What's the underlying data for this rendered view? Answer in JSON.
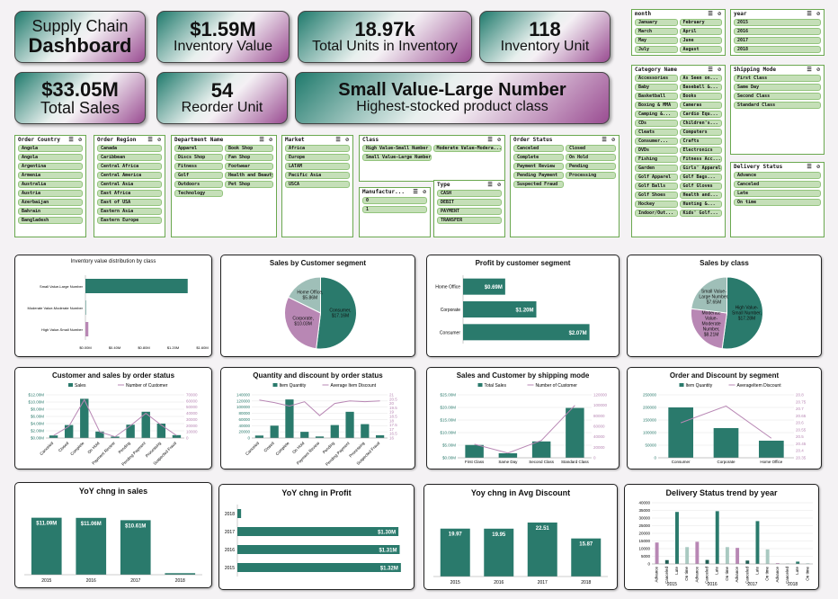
{
  "kpis": {
    "title_line1": "Supply Chain",
    "title_line2": "Dashboard",
    "inventory_value": {
      "value": "$1.59M",
      "label": "Inventory Value"
    },
    "total_units": {
      "value": "18.97k",
      "label": "Total Units in Inventory"
    },
    "inventory_unit": {
      "value": "118",
      "label": "Inventory Unit"
    },
    "total_sales": {
      "value": "$33.05M",
      "label": "Total Sales"
    },
    "reorder_unit": {
      "value": "54",
      "label": "Reorder Unit"
    },
    "class_card": {
      "value": "Small Value-Large Number",
      "label": "Highest-stocked product class"
    }
  },
  "slicers": {
    "month": {
      "title": "month",
      "items": [
        "January",
        "February",
        "March",
        "April",
        "May",
        "June",
        "July",
        "August"
      ]
    },
    "year": {
      "title": "year",
      "items": [
        "2015",
        "2016",
        "2017",
        "2018"
      ]
    },
    "category": {
      "title": "Category Name",
      "items": [
        "Accessories",
        "As Seen on...",
        "Baby",
        "Baseball &...",
        "Basketball",
        "Books",
        "Boxing & MMA",
        "Cameras",
        "Camping &...",
        "Cardio Equ...",
        "CDs",
        "Children's...",
        "Cleats",
        "Computers",
        "Consumer...",
        "Crafts",
        "DVDs",
        "Electronics",
        "Fishing",
        "Fitness Acc...",
        "Garden",
        "Girls' Apparel",
        "Golf Apparel",
        "Golf Bags...",
        "Golf Balls",
        "Golf Gloves",
        "Golf Shoes",
        "Health and...",
        "Hockey",
        "Hunting &...",
        "Indoor/Out...",
        "Kids' Golf..."
      ]
    },
    "shipping": {
      "title": "Shipping Mode",
      "items": [
        "First Class",
        "Same Day",
        "Second Class",
        "Standard Class"
      ]
    },
    "delivery": {
      "title": "Delivery Status",
      "items": [
        "Advance",
        "Canceled",
        "Late",
        "On time"
      ]
    },
    "order_country": {
      "title": "Order Country",
      "items": [
        "Angola",
        "Angola",
        "Argentina",
        "Armenia",
        "Australia",
        "Austria",
        "Azerbaijan",
        "Bahrain",
        "Bangladesh"
      ]
    },
    "order_region": {
      "title": "Order Region",
      "items": [
        "Canada",
        "Caribbean",
        "Central Africa",
        "Central America",
        "Central Asia",
        "East Africa",
        "East of USA",
        "Eastern Asia",
        "Eastern Europe"
      ]
    },
    "department": {
      "title": "Department Name",
      "items": [
        "Apparel",
        "Book Shop",
        "Discs Shop",
        "Fan Shop",
        "Fitness",
        "Footwear",
        "Golf",
        "Health and Beauty",
        "Outdoors",
        "Pet Shop",
        "Technology"
      ]
    },
    "market": {
      "title": "Market",
      "items": [
        "Africa",
        "Europe",
        "LATAM",
        "Pacific Asia",
        "USCA"
      ]
    },
    "class": {
      "title": "Class",
      "items": [
        "High Value-Small Number",
        "Moderate Value-Modera...",
        "Small Value-Large Number"
      ]
    },
    "manufacturer": {
      "title": "Manufactur...",
      "items": [
        "0",
        "1"
      ]
    },
    "type": {
      "title": "Type",
      "items": [
        "CASH",
        "DEBIT",
        "PAYMENT",
        "TRANSFER"
      ]
    },
    "order_status": {
      "title": "Order Status",
      "items": [
        "Canceled",
        "Closed",
        "Complete",
        "On Hold",
        "Payment Review",
        "Pending",
        "Pending Payment",
        "Processing",
        "Suspected Fraud"
      ]
    }
  },
  "chart_data": [
    {
      "id": "inv",
      "type": "bar",
      "orientation": "horizontal",
      "title": "Inventory value distribution by class",
      "categories": [
        "Small Value-Large Number",
        "Moderate Value-Moderate Number",
        "High Value-Small Number"
      ],
      "values": [
        1.4,
        0.0,
        0.04
      ],
      "x_ticks": [
        "$0.00M",
        "$0.40M",
        "$0.80M",
        "$1.20M",
        "$1.60M"
      ],
      "xlim": [
        0,
        1.6
      ],
      "colors": [
        "#2a7a6c",
        "#2a7a6c",
        "#b887b4"
      ]
    },
    {
      "id": "seg_sales",
      "type": "pie",
      "title": "Sales by Customer segment",
      "slices": [
        {
          "name": "Consumer",
          "value": 17.16,
          "label": "Consumer,\n$17.16M",
          "color": "#2a7a6c"
        },
        {
          "name": "Corporate",
          "value": 10.03,
          "label": "Corporate,\n$10.03M",
          "color": "#b887b4"
        },
        {
          "name": "Home Office",
          "value": 5.86,
          "label": "Home Office,\n$5.86M",
          "color": "#9fbfb8"
        }
      ]
    },
    {
      "id": "profit_seg",
      "type": "bar",
      "orientation": "horizontal",
      "title": "Profit by customer segment",
      "categories": [
        "Home Office",
        "Corporate",
        "Consumer"
      ],
      "values": [
        0.69,
        1.2,
        2.07
      ],
      "labels": [
        "$0.69M",
        "$1.20M",
        "$2.07M"
      ],
      "xlim": [
        0,
        2.4
      ]
    },
    {
      "id": "sales_class",
      "type": "pie",
      "title": "Sales by class",
      "slices": [
        {
          "name": "High Value-Small Number",
          "value": 17.28,
          "label": "High Value-\nSmall Number,\n$17.28M",
          "color": "#2a7a6c"
        },
        {
          "name": "Moderate Value-Moderate Number",
          "value": 8.21,
          "label": "Moderate\nValue-\nModerate\nNumber,\n$8.21M",
          "color": "#b887b4"
        },
        {
          "name": "Small Value-Large Number",
          "value": 7.65,
          "label": "Small Value-\nLarge Number,\n$7.65M",
          "color": "#9fbfb8"
        }
      ]
    },
    {
      "id": "status_sales",
      "type": "bar+line",
      "title": "Customer and sales by order status",
      "categories": [
        "Canceled",
        "Closed",
        "Complete",
        "On Hold",
        "Payment Review",
        "Pending",
        "Pending Payment",
        "Processing",
        "Suspected Fraud"
      ],
      "series": [
        {
          "name": "Sales",
          "values": [
            0.7,
            3.6,
            10.9,
            1.8,
            0.4,
            3.7,
            7.3,
            4.0,
            0.8
          ]
        },
        {
          "name": "Number of Customer",
          "values": [
            4000,
            19000,
            62000,
            10000,
            2000,
            20000,
            40000,
            21000,
            4000
          ]
        }
      ],
      "y_ticks": [
        "$0.00M",
        "$2.00M",
        "$4.00M",
        "$6.00M",
        "$8.00M",
        "$10.00M",
        "$12.00M"
      ],
      "ylim": [
        0,
        12
      ],
      "y2_ticks": [
        "0",
        "10000",
        "20000",
        "30000",
        "40000",
        "50000",
        "60000",
        "70000"
      ],
      "y2lim": [
        0,
        70000
      ]
    },
    {
      "id": "status_qty",
      "type": "bar+line",
      "title": "Quantity and discount by order status",
      "categories": [
        "Canceled",
        "Closed",
        "Complete",
        "On Hold",
        "Payment Review",
        "Pending",
        "Pending Payment",
        "Processing",
        "Suspected Fraud"
      ],
      "series": [
        {
          "name": "Item Quantity",
          "values": [
            8000,
            40000,
            125000,
            20000,
            5000,
            42000,
            85000,
            45000,
            9000
          ]
        },
        {
          "name": "Average Item Discount",
          "values": [
            20.4,
            20.1,
            19.7,
            20.2,
            18.6,
            20.0,
            20.3,
            20.2,
            20.3
          ]
        }
      ],
      "y_ticks": [
        "0",
        "20000",
        "40000",
        "60000",
        "80000",
        "100000",
        "120000",
        "140000"
      ],
      "ylim": [
        0,
        140000
      ],
      "y2_ticks": [
        "16",
        "16.5",
        "17",
        "17.5",
        "18",
        "18.5",
        "19",
        "19.5",
        "20",
        "20.5",
        "21"
      ],
      "y2lim": [
        16,
        21
      ]
    },
    {
      "id": "ship_mode",
      "type": "bar+line",
      "title": "Sales and Customer by shipping mode",
      "categories": [
        "First Class",
        "Same Day",
        "Second Class",
        "Standard Class"
      ],
      "series": [
        {
          "name": "Total Sales",
          "values": [
            5.1,
            1.8,
            6.5,
            19.8
          ]
        },
        {
          "name": "Number of Customer",
          "values": [
            26000,
            9000,
            33000,
            100000
          ]
        }
      ],
      "y_ticks": [
        "$0.00M",
        "$5.00M",
        "$10.00M",
        "$15.00M",
        "$20.00M",
        "$25.00M"
      ],
      "ylim": [
        0,
        25
      ],
      "y2_ticks": [
        "0",
        "20000",
        "40000",
        "60000",
        "80000",
        "100000",
        "120000"
      ],
      "y2lim": [
        0,
        120000
      ]
    },
    {
      "id": "seg_order",
      "type": "bar+line",
      "title": "Order and Discount by segment",
      "categories": [
        "Consumer",
        "Corporate",
        "Home Office"
      ],
      "series": [
        {
          "name": "Item Quantity",
          "values": [
            200000,
            118000,
            68000
          ]
        },
        {
          "name": "AverageItem Discount",
          "values": [
            20.6,
            20.72,
            20.49
          ]
        }
      ],
      "y_ticks": [
        "0",
        "50000",
        "100000",
        "150000",
        "200000",
        "250000"
      ],
      "ylim": [
        0,
        250000
      ],
      "y2_ticks": [
        "20.35",
        "20.4",
        "20.45",
        "20.5",
        "20.55",
        "20.6",
        "20.65",
        "20.7",
        "20.75",
        "20.8"
      ],
      "y2lim": [
        20.35,
        20.8
      ]
    },
    {
      "id": "yoy_sales",
      "type": "bar",
      "title": "YoY chng in sales",
      "categories": [
        "2015",
        "2016",
        "2017",
        "2018"
      ],
      "values": [
        11.09,
        11.06,
        10.61,
        0.3
      ],
      "labels": [
        "$11.09M",
        "$11.06M",
        "$10.61M",
        ""
      ],
      "ylim": [
        0,
        14
      ]
    },
    {
      "id": "yoy_profit",
      "type": "bar",
      "orientation": "horizontal",
      "title": "YoY chng in Profit",
      "categories": [
        "2018",
        "2017",
        "2016",
        "2015"
      ],
      "values": [
        0.03,
        1.3,
        1.31,
        1.32
      ],
      "labels": [
        "",
        "$1.30M",
        "$1.31M",
        "$1.32M"
      ],
      "xlim": [
        0,
        1.35
      ]
    },
    {
      "id": "yoy_disc",
      "type": "bar",
      "title": "Yoy chng in Avg Discount",
      "categories": [
        "2015",
        "2016",
        "2017",
        "2018"
      ],
      "values": [
        19.97,
        19.95,
        22.51,
        15.87
      ],
      "labels": [
        "19.97",
        "19.95",
        "22.51",
        "15.87"
      ],
      "ylim": [
        0,
        30
      ]
    },
    {
      "id": "delivery",
      "type": "bar",
      "title": "Delivery Status trend by year",
      "categories": [
        "Advance",
        "Canceled",
        "Late",
        "On time",
        "Advance",
        "Canceled",
        "Late",
        "On time",
        "Advance",
        "Canceled",
        "Late",
        "On time",
        "Advance",
        "Canceled",
        "Late",
        "On time"
      ],
      "groups": [
        "2015",
        "2016",
        "2017",
        "2018"
      ],
      "values": [
        14000,
        2500,
        34000,
        11000,
        14500,
        2600,
        34500,
        11000,
        10500,
        2200,
        28000,
        9500,
        500,
        100,
        1500,
        400
      ],
      "y_ticks": [
        "0",
        "5000",
        "10000",
        "15000",
        "20000",
        "25000",
        "30000",
        "35000",
        "40000"
      ],
      "ylim": [
        0,
        40000
      ]
    }
  ]
}
